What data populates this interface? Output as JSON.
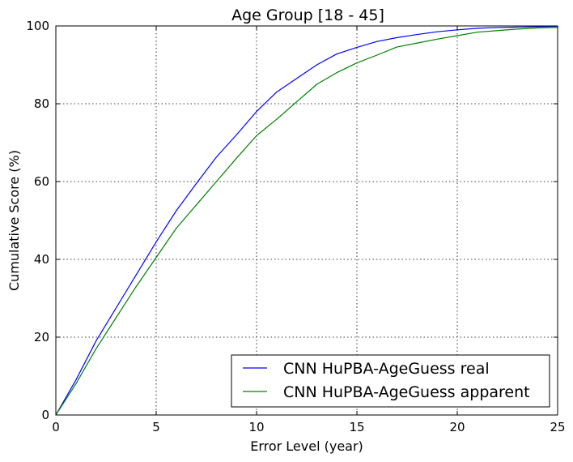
{
  "chart_data": {
    "type": "line",
    "title": "Age Group [18 - 45]",
    "xlabel": "Error Level (year)",
    "ylabel": "Cumulative Score (%)",
    "xlim": [
      0,
      25
    ],
    "ylim": [
      0,
      100
    ],
    "xticks": [
      0,
      5,
      10,
      15,
      20,
      25
    ],
    "yticks": [
      0,
      20,
      40,
      60,
      80,
      100
    ],
    "grid": true,
    "legend_position": "lower-right",
    "series": [
      {
        "name": "CNN HuPBA-AgeGuess real",
        "color": "#0000ff",
        "x": [
          0,
          1,
          2,
          3,
          4,
          5,
          6,
          7,
          8,
          9,
          10,
          11,
          12,
          13,
          14,
          15,
          16,
          17,
          18,
          19,
          20,
          21,
          22,
          23,
          24,
          25
        ],
        "y": [
          0,
          9,
          19,
          27.5,
          36,
          44.5,
          52.5,
          59.5,
          66.3,
          72,
          78,
          83,
          86.5,
          90,
          92.8,
          94.5,
          96,
          97,
          97.8,
          98.5,
          99,
          99.4,
          99.6,
          99.7,
          99.8,
          99.9
        ]
      },
      {
        "name": "CNN HuPBA-AgeGuess apparent",
        "color": "#008000",
        "x": [
          0,
          1,
          2,
          3,
          4,
          5,
          6,
          7,
          8,
          9,
          10,
          11,
          12,
          13,
          14,
          15,
          16,
          17,
          18,
          19,
          20,
          21,
          22,
          23,
          24,
          25
        ],
        "y": [
          0,
          8,
          17,
          25,
          33,
          40.5,
          48,
          54,
          60,
          66,
          71.8,
          76,
          80.5,
          85,
          88,
          90.5,
          92.5,
          94.6,
          95.6,
          96.6,
          97.5,
          98.4,
          98.8,
          99.2,
          99.5,
          99.6
        ]
      }
    ]
  }
}
